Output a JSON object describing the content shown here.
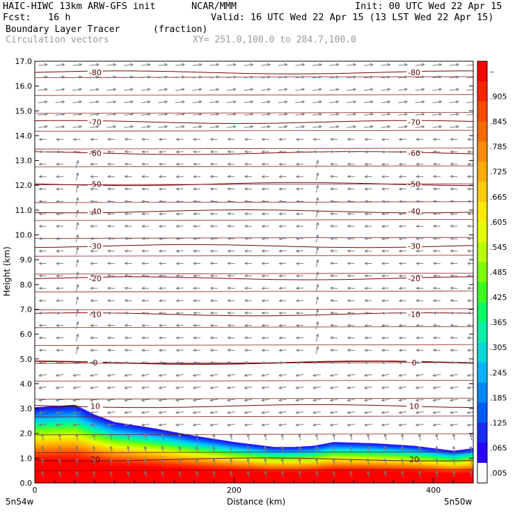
{
  "header": {
    "model": "HAIC-HIWC 13km ARW-GFS init",
    "org": "NCAR/MMM",
    "init": "Init: 00 UTC Wed 22 Apr 15",
    "fcst": "Fcst:   16 h",
    "valid": "Valid: 16 UTC Wed 22 Apr 15 (13 LST Wed 22 Apr 15)",
    "field1": "Boundary Layer Tracer",
    "field1_units": "(fraction)",
    "field2": "Circulation vectors",
    "xy": "XY= 251.0,100.0 to 284.7,100.0"
  },
  "colors": {
    "contour": "#7a0000",
    "vector": "#7a7a7a",
    "colorbar": [
      "#ff0000",
      "#ff2400",
      "#ff4800",
      "#ff6a00",
      "#ff8c00",
      "#ffac00",
      "#ffcc00",
      "#ffea00",
      "#e6ff00",
      "#b8ff00",
      "#7cff00",
      "#3cff20",
      "#00ff66",
      "#00f0a8",
      "#00d8d8",
      "#00b4ff",
      "#0088ff",
      "#005cff",
      "#1a2cff",
      "#2a00ff",
      "#ffffff"
    ]
  },
  "chart_data": {
    "type": "cross-section",
    "xlabel": "Distance (km)",
    "ylabel": "Height (km)",
    "xlim": [
      0,
      440
    ],
    "ylim": [
      0,
      17
    ],
    "xticks": [
      {
        "v": 0,
        "l": "0"
      },
      {
        "v": 200,
        "l": "200"
      },
      {
        "v": 400,
        "l": "400"
      }
    ],
    "yticks": [
      "0.0",
      "1.0",
      "2.0",
      "3.0",
      "4.0",
      "5.0",
      "6.0",
      "7.0",
      "8.0",
      "9.0",
      "10.0",
      "11.0",
      "12.0",
      "13.0",
      "14.0",
      "15.0",
      "16.0",
      "17.0"
    ],
    "corner_left": "5n54w",
    "corner_right": "5n50w",
    "colorbar_labels": [
      ".005",
      ".065",
      ".125",
      ".185",
      ".245",
      ".305",
      ".365",
      ".425",
      ".485",
      ".545",
      ".605",
      ".665",
      ".725",
      ".785",
      ".845",
      ".905",
      "–"
    ],
    "tracer_top_km": [
      [
        0,
        3.05
      ],
      [
        40,
        3.15
      ],
      [
        60,
        2.75
      ],
      [
        80,
        2.45
      ],
      [
        120,
        2.2
      ],
      [
        160,
        1.9
      ],
      [
        200,
        1.65
      ],
      [
        240,
        1.45
      ],
      [
        260,
        1.45
      ],
      [
        280,
        1.5
      ],
      [
        300,
        1.65
      ],
      [
        340,
        1.6
      ],
      [
        380,
        1.5
      ],
      [
        420,
        1.3
      ],
      [
        440,
        1.4
      ]
    ],
    "temperature_contours": [
      {
        "label": "-80",
        "km": 16.55
      },
      {
        "label": "-70",
        "km": 14.55
      },
      {
        "label": "-60",
        "km": 13.3
      },
      {
        "label": "-50",
        "km": 12.05
      },
      {
        "label": "-40",
        "km": 10.95
      },
      {
        "label": "-30",
        "km": 9.55
      },
      {
        "label": "-20",
        "km": 8.25
      },
      {
        "label": "-10",
        "km": 6.8
      },
      {
        "label": "0",
        "km": 4.85
      },
      {
        "label": "10",
        "km": 3.1
      },
      {
        "label": "20",
        "km": 0.95
      }
    ]
  }
}
